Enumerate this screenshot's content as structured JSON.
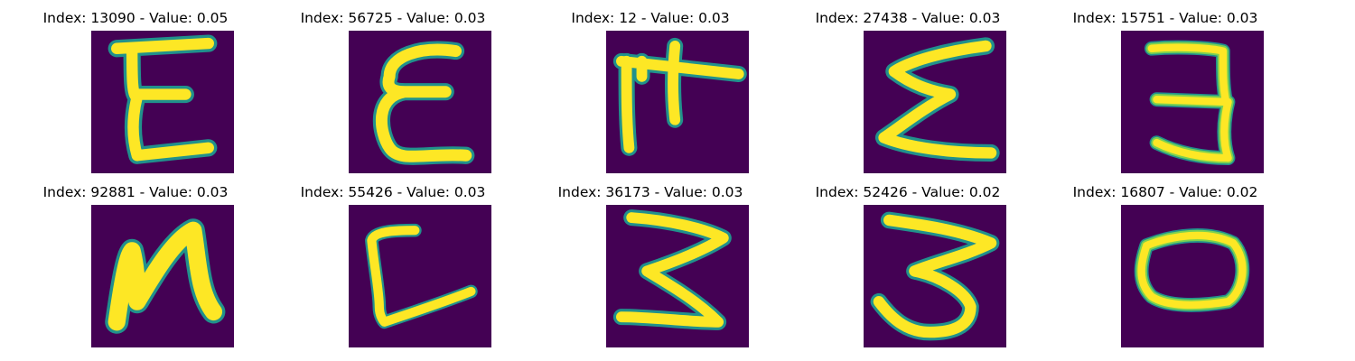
{
  "colors": {
    "background": "#440154",
    "stroke_core": "#fde725",
    "stroke_edge": "#21918c",
    "stroke_mid": "#7ad151"
  },
  "cells": [
    {
      "title": "Index: 13090 - Value: 0.05"
    },
    {
      "title": "Index: 56725 - Value: 0.03"
    },
    {
      "title": "Index: 12 - Value: 0.03"
    },
    {
      "title": "Index: 27438 - Value: 0.03"
    },
    {
      "title": "Index: 15751 - Value: 0.03"
    },
    {
      "title": "Index: 92881 - Value: 0.03"
    },
    {
      "title": "Index: 55426 - Value: 0.03"
    },
    {
      "title": "Index: 36173 - Value: 0.03"
    },
    {
      "title": "Index: 52426 - Value: 0.02"
    },
    {
      "title": "Index: 16807 - Value: 0.02"
    }
  ]
}
